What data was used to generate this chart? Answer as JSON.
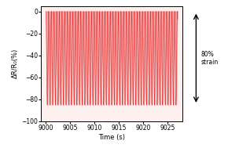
{
  "title": "",
  "xlabel": "Time (s)",
  "ylabel": "ΔR/R₀(%)",
  "xlim": [
    8999,
    9028
  ],
  "ylim": [
    -100,
    5
  ],
  "xticks": [
    9000,
    9005,
    9010,
    9015,
    9020,
    9025
  ],
  "yticks": [
    -100,
    -80,
    -60,
    -40,
    -20,
    0
  ],
  "signal_min": -85,
  "signal_max": 0,
  "t_start": 9000,
  "t_end": 9027,
  "period": 0.55,
  "line_color": "#e83030",
  "fill_color": "#f08080",
  "bg_color": "#ffffff",
  "plot_bg": "#fff0f0",
  "arrow_label": "80%\nstrain",
  "figsize": [
    2.9,
    1.89
  ],
  "dpi": 100
}
